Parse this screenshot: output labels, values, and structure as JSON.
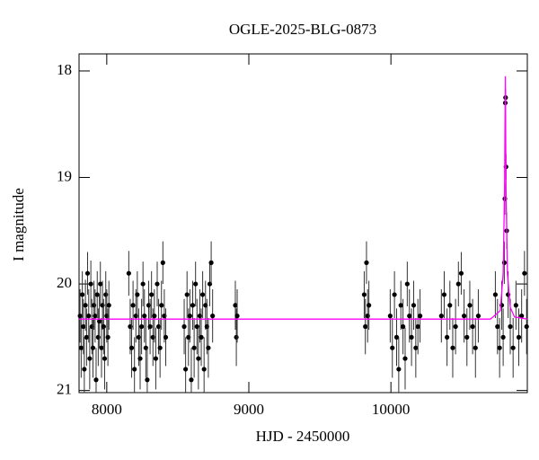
{
  "chart_data": {
    "type": "scatter",
    "title": "OGLE-2025-BLG-0873",
    "x_label": "HJD - 2450000",
    "y_label": "I magnitude",
    "xlim": [
      7805,
      10960
    ],
    "ylim": [
      21.02,
      17.84
    ],
    "xticks": [
      8000,
      9000,
      10000
    ],
    "yticks": [
      18,
      19,
      20,
      21
    ],
    "points": {
      "color": "#000000",
      "x": [
        7812,
        7820,
        7828,
        7835,
        7842,
        7850,
        7858,
        7865,
        7873,
        7880,
        7888,
        7895,
        7903,
        7910,
        7918,
        7925,
        7933,
        7940,
        7948,
        7955,
        7963,
        7970,
        7978,
        7985,
        7993,
        8000,
        8008,
        8015,
        8155,
        8165,
        8175,
        8185,
        8195,
        8205,
        8215,
        8225,
        8235,
        8245,
        8255,
        8265,
        8275,
        8285,
        8295,
        8305,
        8315,
        8325,
        8335,
        8345,
        8355,
        8365,
        8375,
        8385,
        8395,
        8405,
        8415,
        8545,
        8555,
        8565,
        8575,
        8585,
        8595,
        8605,
        8615,
        8625,
        8635,
        8645,
        8655,
        8665,
        8675,
        8685,
        8695,
        8705,
        8715,
        8725,
        8735,
        8745,
        8905,
        8912,
        8918,
        9812,
        9820,
        9828,
        9836,
        9845,
        9995,
        10010,
        10025,
        10040,
        10055,
        10070,
        10085,
        10100,
        10115,
        10130,
        10145,
        10160,
        10175,
        10190,
        10205,
        10355,
        10375,
        10395,
        10415,
        10435,
        10455,
        10475,
        10495,
        10515,
        10535,
        10555,
        10575,
        10595,
        10615,
        10735,
        10750,
        10765,
        10780,
        10790,
        10798,
        10802,
        10805,
        10807,
        10810,
        10815,
        10825,
        10840,
        10860,
        10880,
        10900,
        10920,
        10940,
        10955
      ],
      "values": [
        20.3,
        20.6,
        20.1,
        20.4,
        20.8,
        20.2,
        20.5,
        19.9,
        20.3,
        20.7,
        20.0,
        20.4,
        20.6,
        20.2,
        20.3,
        20.9,
        20.1,
        20.5,
        20.35,
        20.0,
        20.6,
        20.2,
        20.4,
        20.7,
        20.1,
        20.3,
        20.5,
        20.2,
        19.9,
        20.4,
        20.6,
        20.2,
        20.8,
        20.3,
        20.1,
        20.5,
        20.7,
        20.4,
        20.0,
        20.3,
        20.6,
        20.9,
        20.2,
        20.4,
        20.1,
        20.5,
        20.3,
        20.7,
        20.0,
        20.4,
        20.6,
        20.2,
        19.8,
        20.3,
        20.5,
        20.4,
        20.8,
        20.1,
        20.5,
        20.3,
        20.9,
        20.2,
        20.6,
        20.0,
        20.4,
        20.7,
        20.3,
        20.5,
        20.1,
        20.8,
        20.2,
        20.4,
        20.6,
        20.0,
        19.8,
        20.3,
        20.2,
        20.5,
        20.3,
        20.1,
        20.4,
        19.8,
        20.3,
        20.2,
        20.3,
        20.6,
        20.1,
        20.5,
        20.8,
        20.2,
        20.4,
        20.7,
        20.0,
        20.3,
        20.5,
        20.2,
        20.6,
        20.4,
        20.3,
        20.3,
        20.1,
        20.5,
        20.2,
        20.6,
        20.4,
        20.0,
        19.9,
        20.3,
        20.5,
        20.2,
        20.4,
        20.6,
        20.3,
        20.1,
        20.4,
        20.6,
        20.2,
        20.5,
        19.8,
        19.2,
        18.3,
        18.25,
        18.9,
        19.5,
        20.1,
        20.4,
        20.6,
        20.2,
        20.5,
        20.3,
        19.9,
        20.4
      ],
      "errors": [
        0.25,
        0.28,
        0.22,
        0.26,
        0.3,
        0.24,
        0.27,
        0.2,
        0.25,
        0.29,
        0.22,
        0.26,
        0.28,
        0.23,
        0.25,
        0.3,
        0.22,
        0.27,
        0.25,
        0.21,
        0.28,
        0.23,
        0.26,
        0.29,
        0.22,
        0.25,
        0.27,
        0.23,
        0.21,
        0.26,
        0.28,
        0.23,
        0.3,
        0.25,
        0.22,
        0.27,
        0.29,
        0.26,
        0.21,
        0.25,
        0.28,
        0.3,
        0.23,
        0.26,
        0.22,
        0.27,
        0.25,
        0.29,
        0.21,
        0.26,
        0.28,
        0.23,
        0.2,
        0.25,
        0.27,
        0.26,
        0.3,
        0.22,
        0.27,
        0.25,
        0.3,
        0.23,
        0.28,
        0.21,
        0.26,
        0.29,
        0.25,
        0.27,
        0.22,
        0.3,
        0.23,
        0.26,
        0.28,
        0.21,
        0.2,
        0.25,
        0.23,
        0.27,
        0.25,
        0.22,
        0.26,
        0.2,
        0.25,
        0.23,
        0.25,
        0.28,
        0.22,
        0.27,
        0.3,
        0.23,
        0.26,
        0.29,
        0.21,
        0.25,
        0.27,
        0.23,
        0.28,
        0.26,
        0.25,
        0.25,
        0.22,
        0.27,
        0.23,
        0.28,
        0.26,
        0.21,
        0.2,
        0.25,
        0.27,
        0.23,
        0.26,
        0.28,
        0.25,
        0.22,
        0.26,
        0.28,
        0.23,
        0.27,
        0.2,
        0.15,
        0.08,
        0.08,
        0.12,
        0.17,
        0.22,
        0.26,
        0.28,
        0.23,
        0.27,
        0.25,
        0.21,
        0.26
      ]
    },
    "model": {
      "color": "#ff00ff",
      "x": [
        7805,
        10700,
        10770,
        10790,
        10800,
        10805,
        10810,
        10820,
        10840,
        10870,
        10960
      ],
      "values": [
        20.33,
        20.33,
        20.25,
        19.9,
        19.1,
        18.05,
        19.1,
        19.9,
        20.22,
        20.31,
        20.33
      ]
    }
  }
}
